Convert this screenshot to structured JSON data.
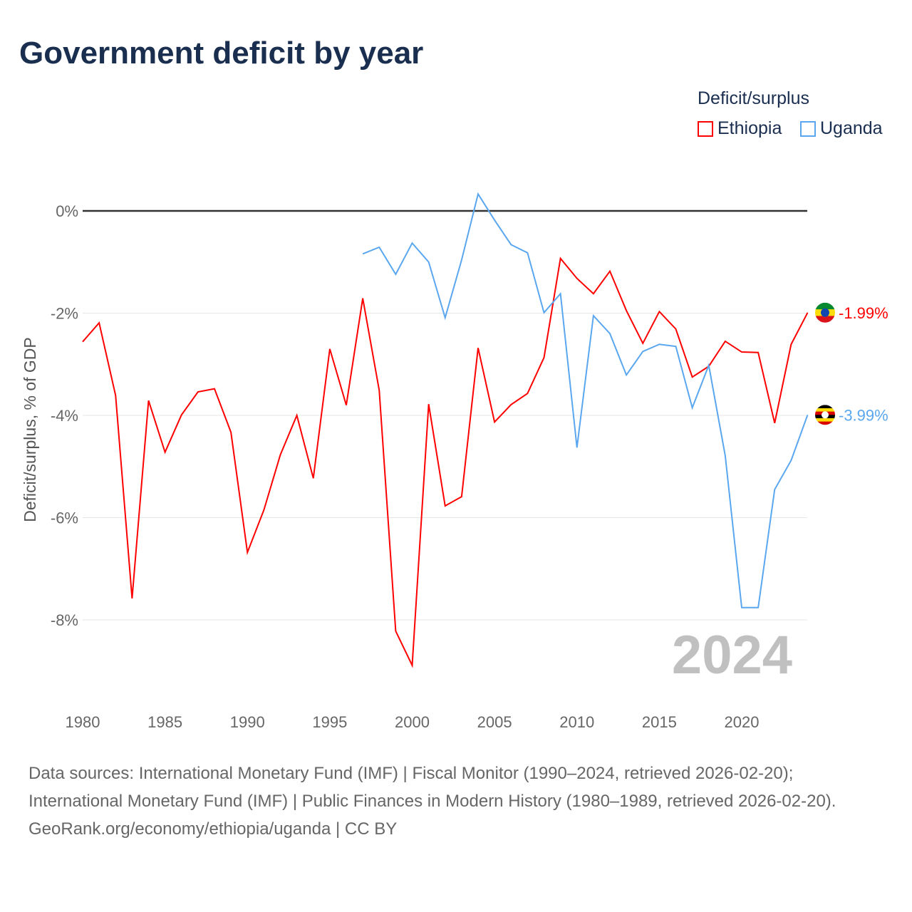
{
  "title": "Government deficit by year",
  "legend": {
    "title": "Deficit/surplus",
    "items": [
      {
        "name": "Ethiopia",
        "color": "#ff0000"
      },
      {
        "name": "Uganda",
        "color": "#5aa7ef"
      }
    ]
  },
  "year_label": "2024",
  "footer": {
    "sources": "Data sources: International Monetary Fund (IMF) | Fiscal Monitor (1990–2024, retrieved 2026-02-20); International Monetary Fund (IMF) | Public Finances in Modern History (1980–1989, retrieved 2026-02-20).",
    "credit": "GeoRank.org/economy/ethiopia/uganda | CC BY"
  },
  "chart_data": {
    "type": "line",
    "title": "Government deficit by year",
    "xlabel": "",
    "ylabel": "Deficit/surplus, % of GDP",
    "xlim": [
      1980,
      2024
    ],
    "ylim": [
      -9,
      0.5
    ],
    "xticks": [
      1980,
      1985,
      1990,
      1995,
      2000,
      2005,
      2010,
      2015,
      2020
    ],
    "yticks": [
      {
        "v": 0,
        "label": "0%"
      },
      {
        "v": -2,
        "label": "-2%"
      },
      {
        "v": -4,
        "label": "-4%"
      },
      {
        "v": -6,
        "label": "-6%"
      },
      {
        "v": -8,
        "label": "-8%"
      }
    ],
    "series": [
      {
        "name": "Ethiopia",
        "color": "#ff0000",
        "end_label": "-1.99%",
        "start": 1980,
        "values": [
          -2.56,
          -2.19,
          -3.61,
          -7.58,
          -3.71,
          -4.72,
          -3.99,
          -3.54,
          -3.48,
          -4.33,
          -6.68,
          -5.85,
          -4.77,
          -4.0,
          -5.23,
          -2.7,
          -3.8,
          -1.71,
          -3.51,
          -8.22,
          -8.89,
          -3.78,
          -5.77,
          -5.59,
          -2.68,
          -4.13,
          -3.79,
          -3.57,
          -2.87,
          -0.93,
          -1.32,
          -1.62,
          -1.18,
          -1.95,
          -2.59,
          -1.97,
          -2.31,
          -3.25,
          -3.04,
          -2.55,
          -2.76,
          -2.77,
          -4.15,
          -2.61,
          -1.99
        ]
      },
      {
        "name": "Uganda",
        "color": "#5aa7ef",
        "end_label": "-3.99%",
        "start": 1997,
        "values": [
          -0.84,
          -0.71,
          -1.24,
          -0.63,
          -1.0,
          -2.09,
          -0.96,
          0.33,
          -0.18,
          -0.66,
          -0.82,
          -1.99,
          -1.62,
          -4.63,
          -2.05,
          -2.4,
          -3.21,
          -2.75,
          -2.61,
          -2.65,
          -3.85,
          -3.02,
          -4.79,
          -7.76,
          -7.76,
          -5.45,
          -4.88,
          -3.99
        ]
      }
    ]
  }
}
